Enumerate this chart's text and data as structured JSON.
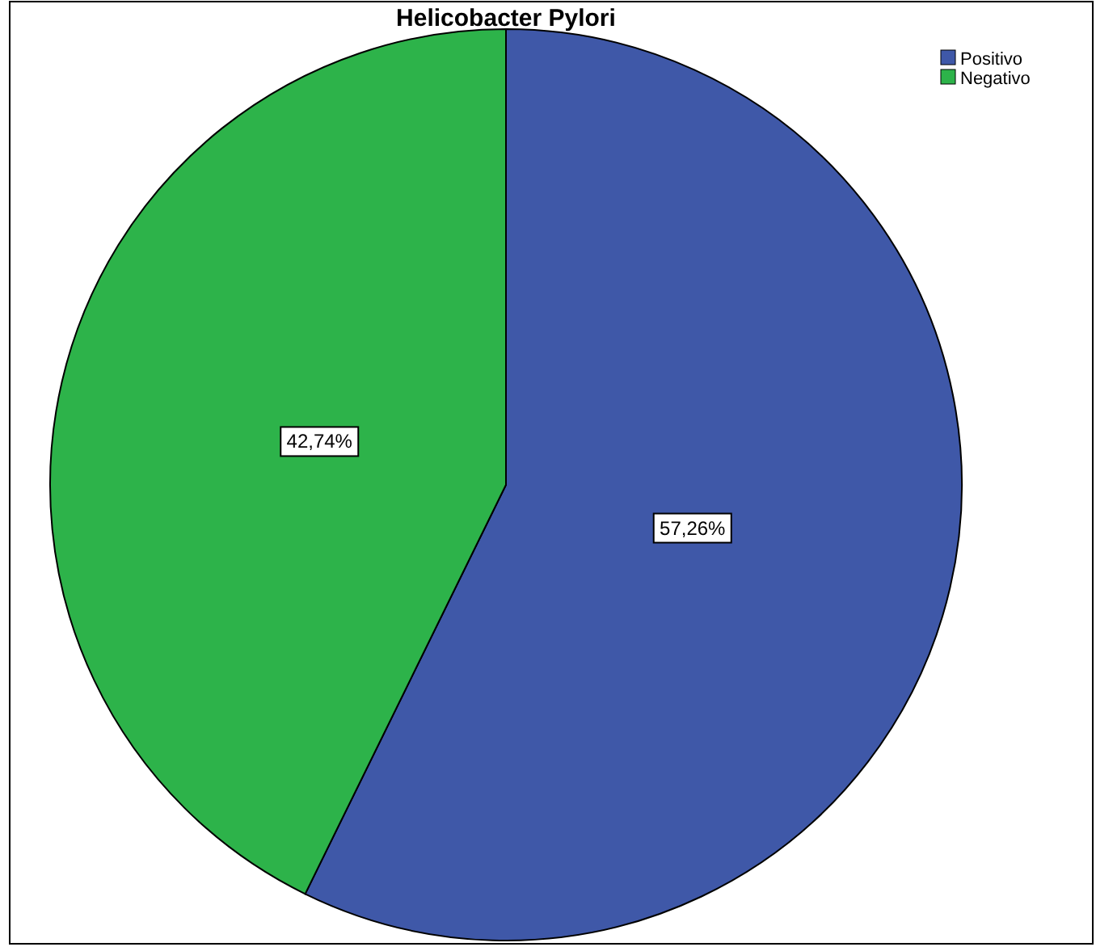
{
  "chart_data": {
    "type": "pie",
    "title": "Helicobacter Pylori",
    "categories": [
      "Positivo",
      "Negativo"
    ],
    "values": [
      57.26,
      42.74
    ],
    "colors": [
      "#3f58a8",
      "#2db34a"
    ],
    "value_labels": [
      "57,26%",
      "42,74%"
    ],
    "legend": "top right"
  }
}
